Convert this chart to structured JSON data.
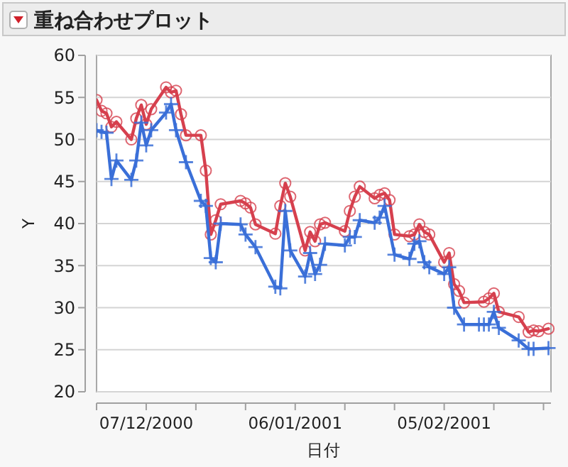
{
  "chart_data": {
    "type": "line",
    "title": "重ね合わせプロット",
    "xlabel": "日付",
    "ylabel": "Y",
    "xlim": [
      "2000-11-27",
      "2001-02-26T12:00"
    ],
    "xticks": [
      {
        "value": "2000-11-27",
        "label": null
      },
      {
        "value": "2000-12-07",
        "label": "07/12/2000"
      },
      {
        "value": "2000-12-17",
        "label": null
      },
      {
        "value": "2000-12-27",
        "label": null
      },
      {
        "value": "2001-01-06",
        "label": "06/01/2001"
      },
      {
        "value": "2001-01-16",
        "label": null
      },
      {
        "value": "2001-01-26",
        "label": null
      },
      {
        "value": "2001-02-05",
        "label": "05/02/2001"
      },
      {
        "value": "2001-02-15",
        "label": null
      },
      {
        "value": "2001-02-25",
        "label": null
      }
    ],
    "ylim": [
      20,
      60
    ],
    "yticks": [
      20,
      25,
      30,
      35,
      40,
      45,
      50,
      55,
      60
    ],
    "grid": "y",
    "line_style": "solid",
    "series": [
      {
        "color": "#d6404e",
        "marker": "circle",
        "x": [
          "2000-11-27",
          "2000-11-28",
          "2000-11-29",
          "2000-11-30",
          "2000-12-01",
          "2000-12-04",
          "2000-12-05",
          "2000-12-06",
          "2000-12-07",
          "2000-12-08",
          "2000-12-11",
          "2000-12-12",
          "2000-12-13",
          "2000-12-14",
          "2000-12-15",
          "2000-12-18",
          "2000-12-19",
          "2000-12-20",
          "2000-12-21",
          "2000-12-22",
          "2000-12-26",
          "2000-12-27",
          "2000-12-28",
          "2000-12-29",
          "2001-01-02",
          "2001-01-03",
          "2001-01-04",
          "2001-01-05",
          "2001-01-08",
          "2001-01-09",
          "2001-01-10",
          "2001-01-11",
          "2001-01-12",
          "2001-01-16",
          "2001-01-17",
          "2001-01-18",
          "2001-01-19",
          "2001-01-22",
          "2001-01-23",
          "2001-01-24",
          "2001-01-25",
          "2001-01-26",
          "2001-01-29",
          "2001-01-30",
          "2001-01-31",
          "2001-02-01",
          "2001-02-02",
          "2001-02-05",
          "2001-02-06",
          "2001-02-07",
          "2001-02-08",
          "2001-02-09",
          "2001-02-13",
          "2001-02-14",
          "2001-02-15",
          "2001-02-16",
          "2001-02-20",
          "2001-02-22",
          "2001-02-23",
          "2001-02-24",
          "2001-02-26"
        ],
        "values": [
          54.7,
          53.4,
          53.1,
          51.5,
          52.1,
          50.0,
          52.5,
          54.1,
          51.8,
          53.6,
          56.2,
          55.6,
          55.8,
          53.0,
          50.5,
          50.5,
          46.3,
          38.7,
          40.4,
          42.3,
          42.7,
          42.4,
          41.9,
          39.9,
          38.8,
          42.1,
          44.8,
          43.2,
          36.8,
          39.0,
          37.9,
          39.9,
          40.1,
          39.1,
          41.5,
          43.2,
          44.4,
          43.0,
          43.4,
          43.6,
          42.8,
          38.7,
          38.5,
          38.7,
          39.9,
          39.0,
          38.7,
          35.4,
          36.5,
          32.8,
          32.0,
          30.6,
          30.7,
          31.1,
          31.7,
          29.5,
          28.9,
          27.1,
          27.3,
          27.2,
          27.5
        ]
      },
      {
        "color": "#3a6fd8",
        "marker": "cross",
        "x": [
          "2000-11-27",
          "2000-11-28",
          "2000-11-29",
          "2000-11-30",
          "2000-12-01",
          "2000-12-04",
          "2000-12-05",
          "2000-12-06",
          "2000-12-07",
          "2000-12-08",
          "2000-12-11",
          "2000-12-12",
          "2000-12-13",
          "2000-12-15",
          "2000-12-18",
          "2000-12-19",
          "2000-12-20",
          "2000-12-21",
          "2000-12-22",
          "2000-12-26",
          "2000-12-27",
          "2000-12-29",
          "2001-01-02",
          "2001-01-03",
          "2001-01-04",
          "2001-01-05",
          "2001-01-08",
          "2001-01-09",
          "2001-01-10",
          "2001-01-11",
          "2001-01-12",
          "2001-01-16",
          "2001-01-17",
          "2001-01-18",
          "2001-01-19",
          "2001-01-22",
          "2001-01-23",
          "2001-01-24",
          "2001-01-26",
          "2001-01-29",
          "2001-01-30",
          "2001-01-31",
          "2001-02-01",
          "2001-02-02",
          "2001-02-05",
          "2001-02-06",
          "2001-02-07",
          "2001-02-09",
          "2001-02-12",
          "2001-02-13",
          "2001-02-14",
          "2001-02-15",
          "2001-02-16",
          "2001-02-20",
          "2001-02-22",
          "2001-02-23",
          "2001-02-26"
        ],
        "values": [
          51.1,
          50.9,
          50.8,
          45.3,
          47.5,
          45.2,
          47.5,
          52.0,
          49.3,
          51.1,
          53.2,
          54.2,
          51.1,
          47.3,
          42.7,
          42.1,
          35.9,
          35.4,
          40.0,
          39.9,
          38.7,
          37.2,
          32.5,
          32.3,
          41.5,
          36.8,
          33.7,
          36.5,
          34.0,
          35.1,
          37.6,
          37.4,
          38.4,
          38.4,
          40.4,
          40.1,
          40.7,
          42.1,
          36.3,
          35.8,
          37.6,
          37.9,
          35.4,
          34.8,
          34.0,
          34.8,
          30.0,
          28.0,
          28.0,
          28.0,
          28.0,
          29.5,
          27.6,
          26.1,
          25.1,
          25.1,
          25.2
        ]
      }
    ]
  }
}
